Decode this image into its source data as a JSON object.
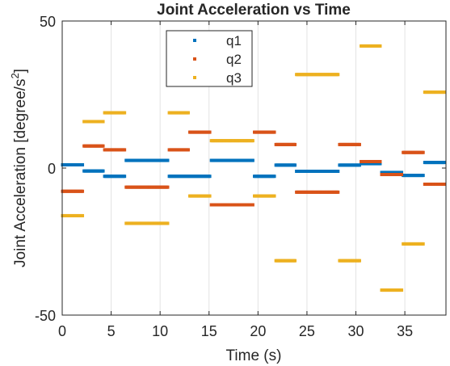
{
  "chart_data": {
    "type": "scatter",
    "title": "Joint Acceleration vs Time",
    "xlabel": "Time (s)",
    "ylabel_main": "Joint Acceleration [degree/s",
    "ylabel_sup": "2",
    "ylabel_end": "]",
    "xlim": [
      0,
      39.2
    ],
    "ylim": [
      -50,
      50
    ],
    "xticks": [
      0,
      5,
      10,
      15,
      20,
      25,
      30,
      35
    ],
    "yticks": [
      -50,
      0,
      50
    ],
    "xtick_labels": [
      "0",
      "5",
      "10",
      "15",
      "20",
      "25",
      "30",
      "35"
    ],
    "ytick_labels": [
      "-50",
      "0",
      "50"
    ],
    "grid": "x",
    "legend_position": "top-center",
    "marker": "point",
    "series": [
      {
        "name": "q1",
        "color": "#0072BD",
        "segments": [
          [
            0.0,
            2.2,
            1.1
          ],
          [
            2.2,
            4.3,
            -1.0
          ],
          [
            4.3,
            6.5,
            -2.8
          ],
          [
            6.5,
            8.7,
            2.6
          ],
          [
            8.7,
            10.9,
            2.6
          ],
          [
            10.9,
            13.0,
            -2.8
          ],
          [
            13.0,
            15.2,
            -2.8
          ],
          [
            15.2,
            17.4,
            2.6
          ],
          [
            17.4,
            19.6,
            2.6
          ],
          [
            19.6,
            21.8,
            -2.8
          ],
          [
            21.8,
            23.9,
            1.0
          ],
          [
            23.9,
            26.1,
            -1.1
          ],
          [
            26.1,
            28.3,
            -1.1
          ],
          [
            28.3,
            30.5,
            1.0
          ],
          [
            30.5,
            32.6,
            1.5
          ],
          [
            32.6,
            34.8,
            -1.5
          ],
          [
            34.8,
            37.0,
            -2.5
          ],
          [
            37.0,
            39.2,
            1.9
          ]
        ]
      },
      {
        "name": "q2",
        "color": "#D95319",
        "segments": [
          [
            0.0,
            2.2,
            -7.9
          ],
          [
            2.2,
            4.3,
            7.5
          ],
          [
            4.3,
            6.5,
            6.2
          ],
          [
            6.5,
            8.7,
            -6.5
          ],
          [
            8.7,
            10.9,
            -6.5
          ],
          [
            10.9,
            13.0,
            6.2
          ],
          [
            13.0,
            15.2,
            12.2
          ],
          [
            15.2,
            17.4,
            -12.5
          ],
          [
            17.4,
            19.6,
            -12.5
          ],
          [
            19.6,
            21.8,
            12.2
          ],
          [
            21.8,
            23.9,
            8.0
          ],
          [
            23.9,
            26.1,
            -8.2
          ],
          [
            26.1,
            28.3,
            -8.2
          ],
          [
            28.3,
            30.5,
            8.0
          ],
          [
            30.5,
            32.6,
            2.2
          ],
          [
            32.6,
            34.8,
            -2.2
          ],
          [
            34.8,
            37.0,
            5.3
          ],
          [
            37.0,
            39.2,
            -5.5
          ]
        ]
      },
      {
        "name": "q3",
        "color": "#EDB120",
        "segments": [
          [
            0.0,
            2.2,
            -16.2
          ],
          [
            2.2,
            4.3,
            15.8
          ],
          [
            4.3,
            6.5,
            18.8
          ],
          [
            6.5,
            8.7,
            -18.8
          ],
          [
            8.7,
            10.9,
            -18.8
          ],
          [
            10.9,
            13.0,
            18.8
          ],
          [
            13.0,
            15.2,
            -9.5
          ],
          [
            15.2,
            17.4,
            9.3
          ],
          [
            17.4,
            19.6,
            9.3
          ],
          [
            19.6,
            21.8,
            -9.5
          ],
          [
            21.8,
            23.9,
            -31.5
          ],
          [
            23.9,
            26.1,
            31.8
          ],
          [
            26.1,
            28.3,
            31.8
          ],
          [
            28.3,
            30.5,
            -31.5
          ],
          [
            30.5,
            32.6,
            41.5
          ],
          [
            32.6,
            34.8,
            -41.5
          ],
          [
            34.8,
            37.0,
            -25.8
          ],
          [
            37.0,
            39.2,
            25.8
          ]
        ]
      }
    ]
  }
}
